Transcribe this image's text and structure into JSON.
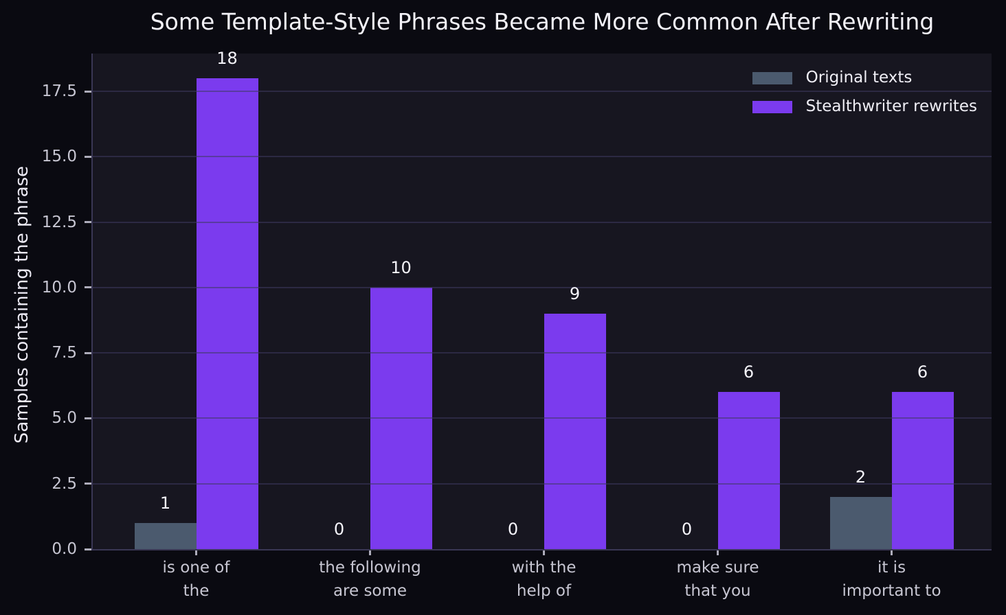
{
  "title": "Some Template-Style Phrases Became More Common After Rewriting",
  "colors": {
    "figure_bg": "#0a0a11",
    "plot_bg": "#171620",
    "grid": "rgba(62,58,96,0.55)",
    "spine": "#3a3754",
    "tick_text": "#c7c6d2",
    "title_text": "#f3f2f8",
    "value_label_text": "#f5f4fa",
    "original_series": "#4b5a6e",
    "rewrites_series": "#7b3bee"
  },
  "chart_data": {
    "type": "bar",
    "title": "Some Template-Style Phrases Became More Common After Rewriting",
    "xlabel": "",
    "ylabel": "Samples containing the phrase",
    "categories": [
      "is one of\nthe",
      "the following\nare some",
      "with the\nhelp of",
      "make sure\nthat you",
      "it is\nimportant to"
    ],
    "series": [
      {
        "name": "Original texts",
        "color": "#4b5a6e",
        "values": [
          1,
          0,
          0,
          0,
          2
        ]
      },
      {
        "name": "Stealthwriter rewrites",
        "color": "#7b3bee",
        "values": [
          18,
          10,
          9,
          6,
          6
        ]
      }
    ],
    "value_labels_shown": true,
    "yticks": [
      {
        "v": 0,
        "label": "0.0"
      },
      {
        "v": 2.5,
        "label": "2.5"
      },
      {
        "v": 5,
        "label": "5.0"
      },
      {
        "v": 7.5,
        "label": "7.5"
      },
      {
        "v": 10,
        "label": "10.0"
      },
      {
        "v": 12.5,
        "label": "12.5"
      },
      {
        "v": 15,
        "label": "15.0"
      },
      {
        "v": 17.5,
        "label": "17.5"
      }
    ],
    "ylim": [
      0,
      18.95
    ],
    "grid": true,
    "grid_over_bars": true,
    "legend_position": "upper right"
  }
}
